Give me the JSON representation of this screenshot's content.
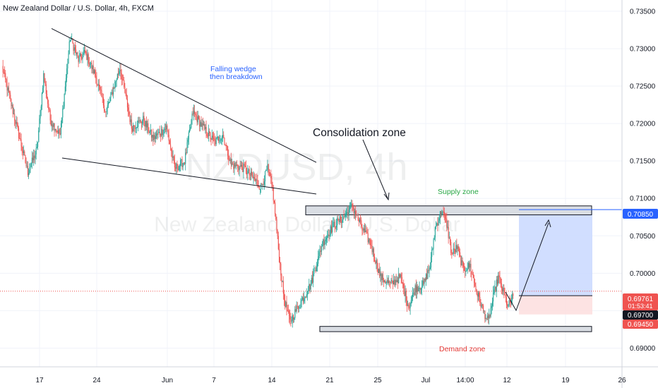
{
  "header": {
    "title": "New Zealand Dollar / U.S. Dollar, 4h, FXCM"
  },
  "watermark": {
    "symbol": "NZDUSD, 4h",
    "name": "New Zealand Dollar / U.S. Dollar"
  },
  "annotations": {
    "wedge_line1": "Falling wedge",
    "wedge_line2": "then breakdown",
    "consolidation": "Consolidation zone",
    "supply": "Supply zone",
    "demand": "Demand zone"
  },
  "price_badges": {
    "target": "0.70850",
    "last": "0.69761",
    "countdown": "01:53:41",
    "entry": "0.69700",
    "stop": "0.69450"
  },
  "colors": {
    "up": "#26a69a",
    "down": "#ef5350",
    "accent": "#2962ff",
    "wedge_text": "#2962ff",
    "supply_text": "#28a745",
    "demand_text": "#e53935",
    "profit_zone": "#c9d8ff",
    "loss_zone": "#fde0e0",
    "zone_fill": "#d9dde3"
  },
  "chart_data": {
    "type": "candlestick",
    "title": "New Zealand Dollar / U.S. Dollar, 4h, FXCM",
    "ylim": [
      0.6875,
      0.7365
    ],
    "y_ticks": [
      "0.73500",
      "0.73000",
      "0.72500",
      "0.72000",
      "0.71500",
      "0.71000",
      "0.70500",
      "0.70000",
      "0.69500",
      "0.69000"
    ],
    "y_tick_values": [
      0.735,
      0.73,
      0.725,
      0.72,
      0.715,
      0.71,
      0.705,
      0.7,
      0.695,
      0.69
    ],
    "x_ticks": [
      "17",
      "24",
      "Jun",
      "7",
      "14",
      "21",
      "25",
      "Jul",
      "14:00",
      "12",
      "19",
      "26"
    ],
    "grid": true,
    "key_points": [
      {
        "t": 0,
        "p": 0.7275
      },
      {
        "t": 20,
        "p": 0.7185
      },
      {
        "t": 31,
        "p": 0.7135
      },
      {
        "t": 42,
        "p": 0.7165
      },
      {
        "t": 50,
        "p": 0.7265
      },
      {
        "t": 58,
        "p": 0.7205
      },
      {
        "t": 70,
        "p": 0.7185
      },
      {
        "t": 82,
        "p": 0.7315
      },
      {
        "t": 92,
        "p": 0.7285
      },
      {
        "t": 100,
        "p": 0.7295
      },
      {
        "t": 112,
        "p": 0.7265
      },
      {
        "t": 125,
        "p": 0.7215
      },
      {
        "t": 142,
        "p": 0.7275
      },
      {
        "t": 156,
        "p": 0.7195
      },
      {
        "t": 170,
        "p": 0.7205
      },
      {
        "t": 182,
        "p": 0.718
      },
      {
        "t": 198,
        "p": 0.7195
      },
      {
        "t": 208,
        "p": 0.714
      },
      {
        "t": 220,
        "p": 0.715
      },
      {
        "t": 230,
        "p": 0.7215
      },
      {
        "t": 242,
        "p": 0.7195
      },
      {
        "t": 256,
        "p": 0.7175
      },
      {
        "t": 266,
        "p": 0.7185
      },
      {
        "t": 276,
        "p": 0.7145
      },
      {
        "t": 292,
        "p": 0.714
      },
      {
        "t": 300,
        "p": 0.713
      },
      {
        "t": 312,
        "p": 0.7115
      },
      {
        "t": 320,
        "p": 0.714
      },
      {
        "t": 326,
        "p": 0.7112
      },
      {
        "t": 330,
        "p": 0.707
      },
      {
        "t": 334,
        "p": 0.702
      },
      {
        "t": 340,
        "p": 0.6965
      },
      {
        "t": 347,
        "p": 0.6935
      },
      {
        "t": 354,
        "p": 0.695
      },
      {
        "t": 372,
        "p": 0.6985
      },
      {
        "t": 386,
        "p": 0.704
      },
      {
        "t": 400,
        "p": 0.7065
      },
      {
        "t": 412,
        "p": 0.7075
      },
      {
        "t": 422,
        "p": 0.709
      },
      {
        "t": 434,
        "p": 0.706
      },
      {
        "t": 444,
        "p": 0.704
      },
      {
        "t": 456,
        "p": 0.6995
      },
      {
        "t": 468,
        "p": 0.6985
      },
      {
        "t": 480,
        "p": 0.6995
      },
      {
        "t": 490,
        "p": 0.6955
      },
      {
        "t": 498,
        "p": 0.698
      },
      {
        "t": 508,
        "p": 0.6985
      },
      {
        "t": 516,
        "p": 0.701
      },
      {
        "t": 522,
        "p": 0.706
      },
      {
        "t": 530,
        "p": 0.7085
      },
      {
        "t": 536,
        "p": 0.7065
      },
      {
        "t": 542,
        "p": 0.7025
      },
      {
        "t": 548,
        "p": 0.7035
      },
      {
        "t": 556,
        "p": 0.7005
      },
      {
        "t": 564,
        "p": 0.701
      },
      {
        "t": 572,
        "p": 0.6975
      },
      {
        "t": 580,
        "p": 0.695
      },
      {
        "t": 586,
        "p": 0.6935
      },
      {
        "t": 592,
        "p": 0.6968
      },
      {
        "t": 598,
        "p": 0.6995
      },
      {
        "t": 604,
        "p": 0.6975
      },
      {
        "t": 610,
        "p": 0.6955
      },
      {
        "t": 616,
        "p": 0.697
      }
    ],
    "wedge_upper": [
      [
        0,
        0.7325
      ],
      [
        230,
        0.715
      ]
    ],
    "wedge_lower": [
      [
        -65,
        0.7155
      ],
      [
        218,
        0.711
      ]
    ],
    "supply_zone": [
      0.7078,
      0.709
    ],
    "demand_zone": [
      0.6922,
      0.6929
    ],
    "position": {
      "entry": 0.697,
      "target": 0.7085,
      "stop": 0.6945
    },
    "projection": [
      [
        628,
        0.6955
      ],
      [
        668,
        0.7078
      ]
    ]
  }
}
